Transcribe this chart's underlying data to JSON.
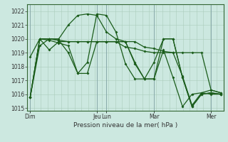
{
  "background_color": "#cce8e0",
  "grid_color": "#aaccbb",
  "line_color": "#1a5c1a",
  "xlabel": "Pression niveau de la mer( hPa )",
  "ylim": [
    1014.8,
    1022.5
  ],
  "yticks": [
    1015,
    1016,
    1017,
    1018,
    1019,
    1020,
    1021,
    1022
  ],
  "xtick_labels": [
    "Dim",
    "Jeu",
    "Lun",
    "Mar",
    "Mer"
  ],
  "xtick_positions": [
    0,
    7,
    8,
    13,
    19
  ],
  "vline_positions": [
    0,
    7,
    8,
    13,
    19
  ],
  "n_points": 21,
  "series": [
    [
      1015.8,
      1020.0,
      1020.0,
      1019.9,
      1019.8,
      1019.8,
      1019.8,
      1019.8,
      1019.8,
      1019.8,
      1019.8,
      1019.8,
      1019.4,
      1019.3,
      1019.1,
      1019.0,
      1017.3,
      1015.2,
      1016.1,
      1016.3,
      1016.1
    ],
    [
      1015.8,
      1020.0,
      1020.0,
      1020.0,
      1021.0,
      1021.7,
      1021.8,
      1021.7,
      1020.5,
      1020.0,
      1019.8,
      1018.3,
      1017.1,
      1018.3,
      1020.0,
      1020.0,
      1017.2,
      1015.1,
      1016.0,
      1016.1,
      1016.0
    ],
    [
      1015.8,
      1020.0,
      1019.9,
      1019.7,
      1019.5,
      1017.5,
      1018.3,
      1021.8,
      1021.7,
      1020.5,
      1018.2,
      1017.1,
      1017.1,
      1017.1,
      1020.0,
      1020.0,
      1017.2,
      1015.1,
      1016.0,
      1016.1,
      1016.0
    ],
    [
      1015.8,
      1019.5,
      1020.0,
      1019.9,
      1019.0,
      1017.5,
      1017.5,
      1019.8,
      1019.8,
      1019.8,
      1019.8,
      1018.2,
      1017.1,
      1017.1,
      1019.2,
      1017.2,
      1015.1,
      1016.0,
      1016.1,
      1016.0,
      1016.0
    ],
    [
      1018.7,
      1020.0,
      1019.2,
      1019.8,
      1019.8,
      1019.8,
      1019.8,
      1019.8,
      1019.8,
      1019.8,
      1019.4,
      1019.3,
      1019.1,
      1019.0,
      1019.0,
      1019.0,
      1019.0,
      1019.0,
      1019.0,
      1016.3,
      1016.1
    ]
  ]
}
